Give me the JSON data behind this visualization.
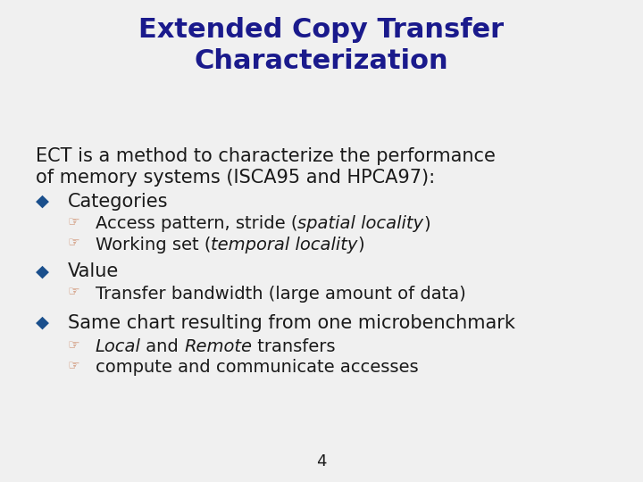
{
  "title_line1": "Extended Copy Transfer",
  "title_line2": "Characterization",
  "title_color": "#1a1a8c",
  "title_fontsize": 22,
  "body_color": "#1a1a1a",
  "body_fontsize": 15,
  "bullet1_color": "#1a4f8c",
  "sub_bullet_color": "#cc8866",
  "background_color": "#f0f0f0",
  "page_number": "4",
  "intro_text_line1": "ECT is a method to characterize the performance",
  "intro_text_line2": "of memory systems (ISCA95 and HPCA97):",
  "items": [
    {
      "level": 1,
      "parts": [
        {
          "t": "Categories",
          "i": false
        }
      ]
    },
    {
      "level": 2,
      "parts": [
        {
          "t": "Access pattern, stride (",
          "i": false
        },
        {
          "t": "spatial locality",
          "i": true
        },
        {
          "t": ")",
          "i": false
        }
      ]
    },
    {
      "level": 2,
      "parts": [
        {
          "t": "Working set (",
          "i": false
        },
        {
          "t": "temporal locality",
          "i": true
        },
        {
          "t": ")",
          "i": false
        }
      ]
    },
    {
      "level": 1,
      "parts": [
        {
          "t": "Value",
          "i": false
        }
      ]
    },
    {
      "level": 2,
      "parts": [
        {
          "t": "Transfer bandwidth (large amount of data)",
          "i": false
        }
      ]
    },
    {
      "level": 1,
      "parts": [
        {
          "t": "Same chart resulting from one microbenchmark",
          "i": false
        }
      ]
    },
    {
      "level": 2,
      "parts": [
        {
          "t": "Local",
          "i": true
        },
        {
          "t": " and ",
          "i": false
        },
        {
          "t": "Remote",
          "i": true
        },
        {
          "t": " transfers",
          "i": false
        }
      ]
    },
    {
      "level": 2,
      "parts": [
        {
          "t": "compute and communicate accesses",
          "i": false
        }
      ]
    }
  ]
}
